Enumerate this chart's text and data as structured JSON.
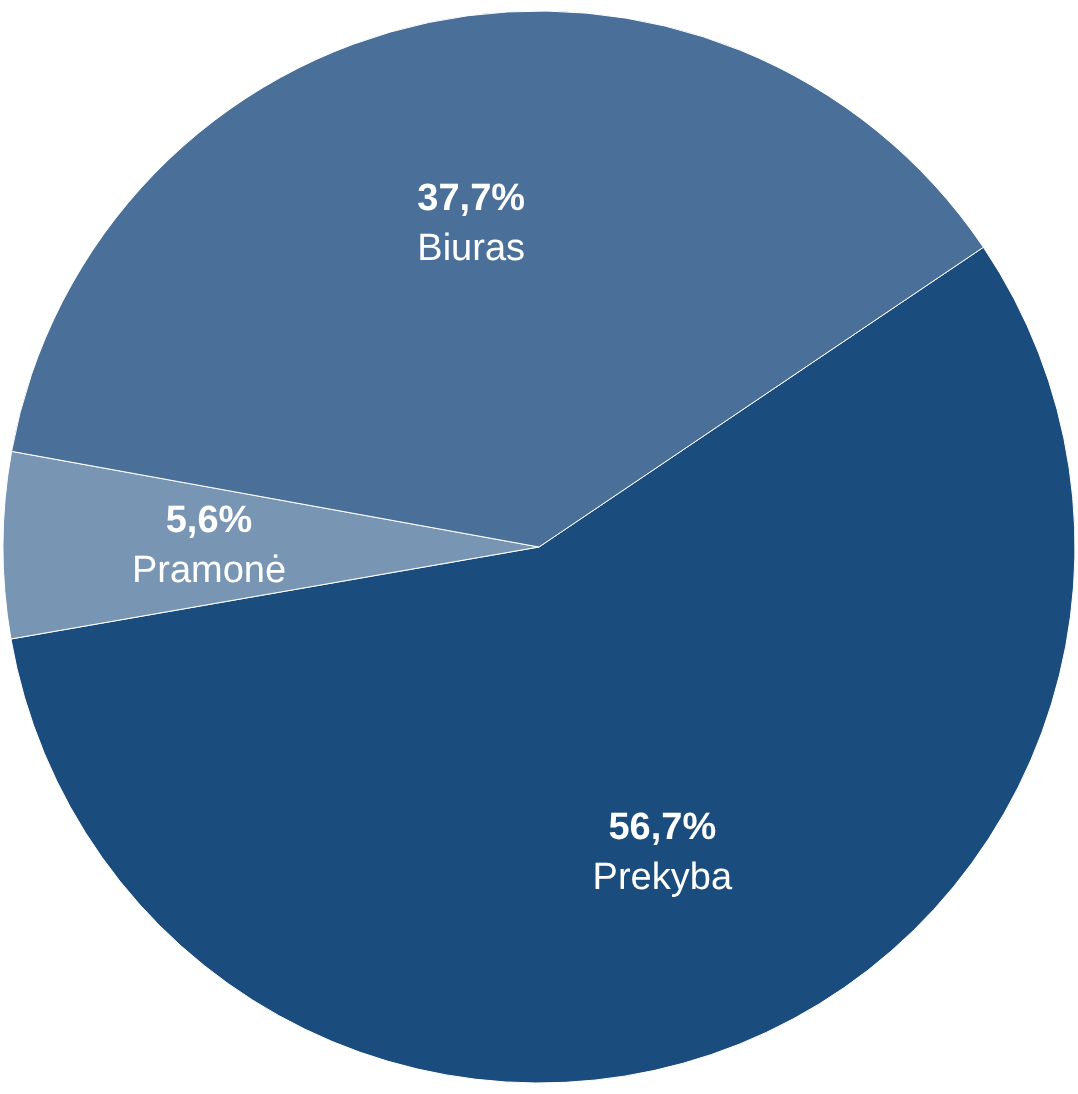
{
  "chart_data": {
    "type": "pie",
    "categories": [
      "Prekyba",
      "Pramonė",
      "Biuras"
    ],
    "values": [
      56.7,
      5.6,
      37.7
    ],
    "colors": [
      "#1a4c7e",
      "#7896b4",
      "#4a7099"
    ],
    "value_labels": [
      "56,7%",
      "5,6%",
      "37,7%"
    ]
  }
}
